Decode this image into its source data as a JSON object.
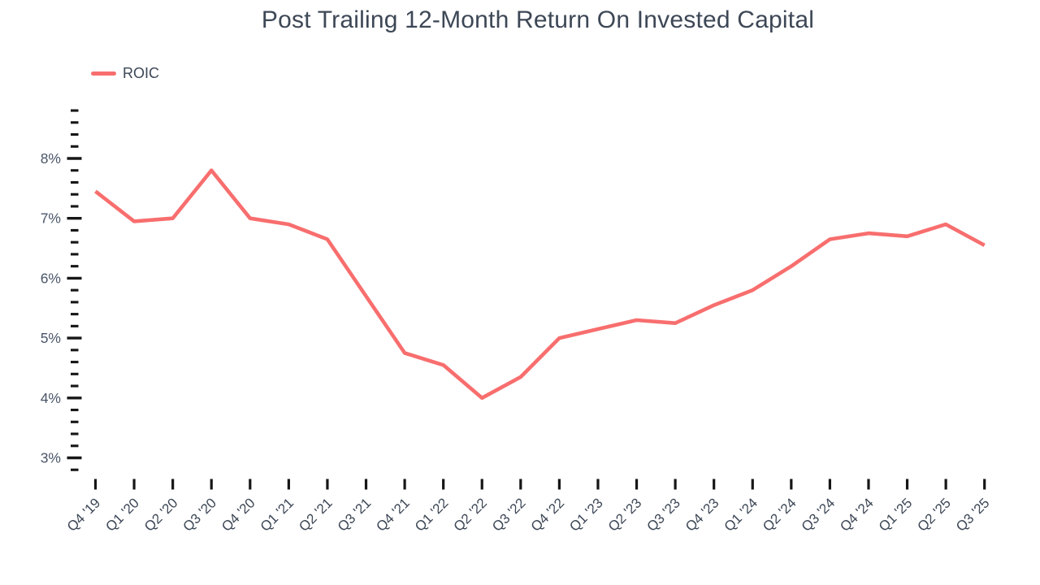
{
  "title": "Post Trailing 12-Month Return On Invested Capital",
  "legend": {
    "label": "ROIC",
    "swatch_color": "#f86e6e"
  },
  "colors": {
    "line": "#f86e6e",
    "text": "#3d4756",
    "axis_label": "#4a5568",
    "tick": "#161616",
    "background": "#ffffff"
  },
  "chart_data": {
    "type": "line",
    "title": "Post Trailing 12-Month Return On Invested Capital",
    "categories": [
      "Q4 '19",
      "Q1 '20",
      "Q2 '20",
      "Q3 '20",
      "Q4 '20",
      "Q1 '21",
      "Q2 '21",
      "Q3 '21",
      "Q4 '21",
      "Q1 '22",
      "Q2 '22",
      "Q3 '22",
      "Q4 '22",
      "Q1 '23",
      "Q2 '23",
      "Q3 '23",
      "Q4 '23",
      "Q1 '24",
      "Q2 '24",
      "Q3 '24",
      "Q4 '24",
      "Q1 '25",
      "Q2 '25",
      "Q3 '25"
    ],
    "series": [
      {
        "name": "ROIC",
        "values": [
          7.45,
          6.95,
          7.0,
          7.8,
          7.0,
          6.9,
          6.65,
          5.7,
          4.75,
          4.55,
          4.0,
          4.35,
          5.0,
          5.15,
          5.3,
          5.25,
          5.55,
          5.8,
          6.2,
          6.65,
          6.75,
          6.7,
          6.9,
          6.55
        ]
      }
    ],
    "xlabel": "",
    "ylabel": "",
    "y_unit": "%",
    "y_major_ticks": [
      8,
      7,
      6,
      5,
      4,
      3
    ],
    "y_major_tick_labels": [
      "8%",
      "7%",
      "6%",
      "5%",
      "4%",
      "3%"
    ],
    "y_minor_step": 0.2,
    "y_axis_range": [
      2.8,
      8.8
    ],
    "grid": false,
    "legend_position": "top-left"
  }
}
